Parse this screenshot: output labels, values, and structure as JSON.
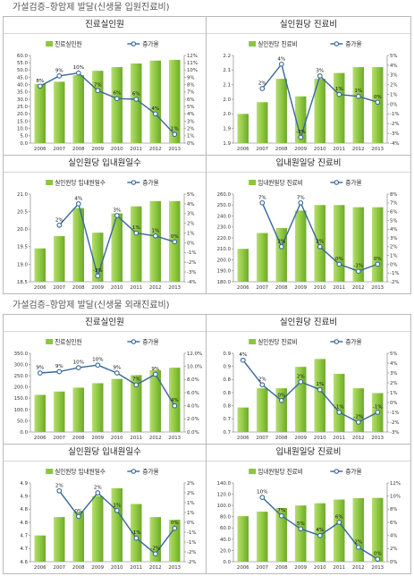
{
  "sections": [
    {
      "title": "가설검증–항암제 발달(신생물 입원진료비)"
    },
    {
      "title": "가설검증–항암제 발달(신생물 외래진료비)"
    }
  ],
  "colors": {
    "bar": "#8cc63e",
    "bar_light": "#b6dd72",
    "bar_dark": "#6ea82c",
    "line": "#36689b"
  },
  "chart_data": [
    {
      "type": "bar",
      "title": "진료실인원",
      "categories": [
        "2006",
        "2007",
        "2008",
        "2009",
        "2010",
        "2011",
        "2012",
        "2013"
      ],
      "series": [
        {
          "name": "진료실인원",
          "type": "bar",
          "axis": "left",
          "values": [
            40.5,
            42.0,
            46.5,
            49.5,
            52.0,
            54.5,
            56.5,
            57.0
          ]
        },
        {
          "name": "증가율",
          "type": "line",
          "axis": "right",
          "values": [
            7.8,
            9.2,
            9.6,
            7.2,
            6.1,
            6.0,
            4.0,
            1.2
          ],
          "labels": [
            "8%",
            "9%",
            "10%",
            "7%",
            "6%",
            "6%",
            "4%",
            "1%"
          ]
        }
      ],
      "y_left": {
        "min": 0,
        "max": 60,
        "ticks": [
          0,
          5,
          10,
          15,
          20,
          25,
          30,
          35,
          40,
          45,
          50,
          55,
          60
        ],
        "tick_labels": [
          "0.0",
          "5.0",
          "10.0",
          "15.0",
          "20.0",
          "25.0",
          "30.0",
          "35.0",
          "40.0",
          "45.0",
          "50.0",
          "55.0",
          "60.0"
        ]
      },
      "y_right": {
        "min": 0,
        "max": 12,
        "ticks": [
          0,
          1,
          2,
          3,
          4,
          5,
          6,
          7,
          8,
          9,
          10,
          11,
          12
        ],
        "tick_labels": [
          "0%",
          "1%",
          "2%",
          "3%",
          "4%",
          "5%",
          "6%",
          "7%",
          "8%",
          "9%",
          "10%",
          "11%",
          "12%"
        ]
      },
      "legend": "top",
      "grid": false
    },
    {
      "type": "bar",
      "title": "실인원당 진료비",
      "categories": [
        "2006",
        "2007",
        "2008",
        "2009",
        "2010",
        "2011",
        "2012",
        "2013"
      ],
      "series": [
        {
          "name": "실인원당 진료비",
          "type": "bar",
          "axis": "left",
          "values": [
            2.0,
            2.04,
            2.12,
            2.06,
            2.12,
            2.14,
            2.16,
            2.16
          ]
        },
        {
          "name": "증가율",
          "type": "line",
          "axis": "right",
          "values": [
            null,
            1.6,
            4.1,
            -3.4,
            2.9,
            1.0,
            0.8,
            0.2
          ],
          "labels": [
            null,
            "2%",
            "4%",
            "-3%",
            "3%",
            "1%",
            "1%",
            "0%"
          ]
        }
      ],
      "y_left": {
        "min": 1.9,
        "max": 2.2,
        "ticks": [
          1.9,
          1.95,
          2.0,
          2.05,
          2.1,
          2.15,
          2.2
        ],
        "tick_labels": [
          "1.9",
          "1.9",
          "2.0",
          "2.0",
          "2.1",
          "2.1",
          "2.2"
        ]
      },
      "y_right": {
        "min": -4,
        "max": 5,
        "ticks": [
          -4,
          -3,
          -2,
          -1,
          0,
          1,
          2,
          3,
          4,
          5
        ],
        "tick_labels": [
          "-4%",
          "-3%",
          "-2%",
          "-1%",
          "0%",
          "1%",
          "2%",
          "3%",
          "4%",
          "5%"
        ]
      },
      "legend": "top",
      "grid": false
    },
    {
      "type": "bar",
      "title": "실인원당 입내원일수",
      "categories": [
        "2006",
        "2007",
        "2008",
        "2009",
        "2010",
        "2011",
        "2012",
        "2013"
      ],
      "series": [
        {
          "name": "실인원당 입내원일수",
          "type": "bar",
          "axis": "left",
          "values": [
            19.45,
            19.8,
            20.6,
            19.9,
            20.45,
            20.65,
            20.8,
            20.8
          ]
        },
        {
          "name": "증가율",
          "type": "line",
          "axis": "right",
          "values": [
            null,
            1.8,
            4.0,
            -3.4,
            2.8,
            1.0,
            0.7,
            0.1
          ],
          "labels": [
            null,
            "2%",
            "4%",
            "-3%",
            "3%",
            "1%",
            "1%",
            "0%"
          ]
        }
      ],
      "y_left": {
        "min": 18.5,
        "max": 21.0,
        "ticks": [
          18.5,
          19.0,
          19.5,
          20.0,
          20.5,
          21.0
        ],
        "tick_labels": [
          "18.5",
          "19.0",
          "19.5",
          "20.0",
          "20.5",
          "21.0"
        ]
      },
      "y_right": {
        "min": -4,
        "max": 5,
        "ticks": [
          -4,
          -3,
          -2,
          -1,
          0,
          1,
          2,
          3,
          4,
          5
        ],
        "tick_labels": [
          "-4%",
          "-3%",
          "-2%",
          "-1%",
          "0%",
          "1%",
          "2%",
          "3%",
          "4%",
          "5%"
        ]
      },
      "legend": "top",
      "grid": false
    },
    {
      "type": "bar",
      "title": "입내원일당 진료비",
      "categories": [
        "2006",
        "2007",
        "2008",
        "2009",
        "2010",
        "2011",
        "2012",
        "2013"
      ],
      "series": [
        {
          "name": "입내원일당 진료비",
          "type": "bar",
          "axis": "left",
          "values": [
            210,
            224.5,
            229,
            245,
            250,
            250,
            248,
            248
          ]
        },
        {
          "name": "증가율",
          "type": "line",
          "axis": "right",
          "values": [
            null,
            7.0,
            2.0,
            7.0,
            2.0,
            0.0,
            -0.8,
            0.0
          ],
          "labels": [
            null,
            "7%",
            "2%",
            "7%",
            "2%",
            "0%",
            "-1%",
            "0%"
          ]
        }
      ],
      "y_left": {
        "min": 180,
        "max": 260,
        "ticks": [
          180,
          190,
          200,
          210,
          220,
          230,
          240,
          250,
          260
        ],
        "tick_labels": [
          "180.0",
          "190.0",
          "200.0",
          "210.0",
          "220.0",
          "230.0",
          "240.0",
          "250.0",
          "260.0"
        ]
      },
      "y_right": {
        "min": -2,
        "max": 8,
        "ticks": [
          -2,
          -1,
          0,
          1,
          2,
          3,
          4,
          5,
          6,
          7,
          8
        ],
        "tick_labels": [
          "-2%",
          "-1%",
          "0%",
          "1%",
          "2%",
          "3%",
          "4%",
          "5%",
          "6%",
          "7%",
          "8%"
        ]
      },
      "legend": "top",
      "grid": false
    },
    {
      "type": "bar",
      "title": "진료실인원",
      "categories": [
        "2006",
        "2007",
        "2008",
        "2009",
        "2010",
        "2011",
        "2012",
        "2013"
      ],
      "series": [
        {
          "name": "진료실인원",
          "type": "bar",
          "axis": "left",
          "values": [
            165,
            180,
            197,
            217,
            236,
            253,
            275,
            286
          ]
        },
        {
          "name": "증가율",
          "type": "line",
          "axis": "right",
          "values": [
            9.0,
            9.2,
            9.8,
            10.2,
            9.0,
            7.2,
            8.8,
            4.0
          ],
          "labels": [
            "9%",
            "9%",
            "10%",
            "10%",
            "9%",
            "7%",
            "9%",
            "4%"
          ]
        }
      ],
      "y_left": {
        "min": 0,
        "max": 350,
        "ticks": [
          0,
          50,
          100,
          150,
          200,
          250,
          300,
          350
        ],
        "tick_labels": [
          "0.0",
          "50.0",
          "100.0",
          "150.0",
          "200.0",
          "250.0",
          "300.0",
          "350.0"
        ]
      },
      "y_right": {
        "min": 0,
        "max": 12,
        "ticks": [
          0,
          2,
          4,
          6,
          8,
          10,
          12
        ],
        "tick_labels": [
          "0.0%",
          "2.0%",
          "4.0%",
          "6.0%",
          "8.0%",
          "10.0%",
          "12.0%"
        ]
      },
      "legend": "top",
      "grid": false
    },
    {
      "type": "bar",
      "title": "실인원당 진료비",
      "categories": [
        "2006",
        "2007",
        "2008",
        "2009",
        "2010",
        "2011",
        "2012",
        "2013"
      ],
      "series": [
        {
          "name": "실인원당 진료비",
          "type": "bar",
          "axis": "left",
          "values": [
            0.756,
            0.8,
            0.8,
            0.849,
            0.867,
            0.833,
            0.8,
            0.789
          ]
        },
        {
          "name": "증가율",
          "type": "line",
          "axis": "right",
          "values": [
            4.3,
            1.8,
            0.2,
            2.1,
            1.3,
            -1.0,
            -2.0,
            -1.0
          ],
          "labels": [
            "4%",
            "2%",
            "0%",
            "2%",
            "1%",
            "-1%",
            "-2%",
            "-1%"
          ]
        }
      ],
      "y_left": {
        "min": 0.7,
        "max": 0.88,
        "ticks": [
          0.7,
          0.73,
          0.76,
          0.79,
          0.82,
          0.85,
          0.88
        ],
        "tick_labels": [
          "0.7",
          "0.7",
          "0.8",
          "0.8",
          "0.8",
          "0.9",
          "0.9"
        ]
      },
      "y_right": {
        "min": -3,
        "max": 5,
        "ticks": [
          -3,
          -2,
          -1,
          0,
          1,
          2,
          3,
          4,
          5
        ],
        "tick_labels": [
          "-3%",
          "-2%",
          "-1%",
          "0%",
          "1%",
          "2%",
          "3%",
          "4%",
          "5%"
        ]
      },
      "legend": "top",
      "grid": false
    },
    {
      "type": "bar",
      "title": "실인원당 입내원일수",
      "categories": [
        "2006",
        "2007",
        "2008",
        "2009",
        "2010",
        "2011",
        "2012",
        "2013"
      ],
      "series": [
        {
          "name": "실인원당 입내원일수",
          "type": "bar",
          "axis": "left",
          "values": [
            4.7,
            4.77,
            4.79,
            4.85,
            4.88,
            4.82,
            4.77,
            4.76
          ]
        },
        {
          "name": "증가율",
          "type": "line",
          "axis": "right",
          "values": [
            null,
            1.6,
            0.3,
            1.5,
            0.6,
            -0.8,
            -1.6,
            -0.3
          ],
          "labels": [
            null,
            "2%",
            "0%",
            "2%",
            "1%",
            "-1%",
            "-2%",
            "0%"
          ]
        }
      ],
      "y_left": {
        "min": 4.6,
        "max": 4.9,
        "ticks": [
          4.6,
          4.65,
          4.7,
          4.75,
          4.8,
          4.85,
          4.9
        ],
        "tick_labels": [
          "4.6",
          "4.7",
          "4.7",
          "4.8",
          "4.8",
          "4.9",
          "4.9"
        ]
      },
      "y_right": {
        "min": -2,
        "max": 2,
        "ticks": [
          -2,
          -1.5,
          -1,
          -0.5,
          0,
          0.5,
          1,
          1.5,
          2
        ],
        "tick_labels": [
          "-2%",
          "-2%",
          "-1%",
          "-1%",
          "0%",
          "1%",
          "1%",
          "2%",
          "2%"
        ]
      },
      "legend": "top",
      "grid": false
    },
    {
      "type": "bar",
      "title": "입내원일당 진료비",
      "categories": [
        "2006",
        "2007",
        "2008",
        "2009",
        "2010",
        "2011",
        "2012",
        "2013"
      ],
      "series": [
        {
          "name": "입내원일당 진료비",
          "type": "bar",
          "axis": "left",
          "values": [
            81,
            89,
            95.5,
            100,
            104,
            110.5,
            113,
            113.5
          ]
        },
        {
          "name": "증가율",
          "type": "line",
          "axis": "right",
          "values": [
            null,
            9.8,
            7.0,
            5.0,
            4.0,
            6.0,
            2.2,
            0.4
          ],
          "labels": [
            null,
            "10%",
            "7%",
            "5%",
            "4%",
            "6%",
            "2%",
            "0%"
          ]
        }
      ],
      "y_left": {
        "min": 0,
        "max": 140,
        "ticks": [
          0,
          20,
          40,
          60,
          80,
          100,
          120,
          140
        ],
        "tick_labels": [
          "0.0",
          "20.0",
          "40.0",
          "60.0",
          "80.0",
          "100.0",
          "120.0",
          "140.0"
        ]
      },
      "y_right": {
        "min": 0,
        "max": 12,
        "ticks": [
          0,
          2,
          4,
          6,
          8,
          10,
          12
        ],
        "tick_labels": [
          "0%",
          "2%",
          "4%",
          "6%",
          "8%",
          "10%",
          "12%"
        ]
      },
      "legend": "top",
      "grid": false
    }
  ]
}
